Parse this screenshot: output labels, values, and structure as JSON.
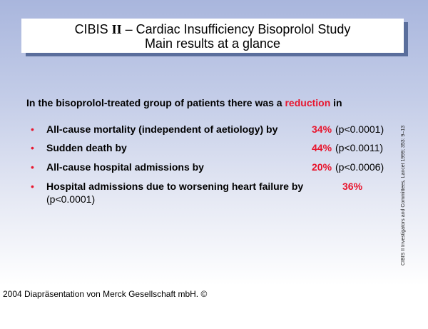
{
  "title": {
    "prefix": "CIBIS ",
    "roman": "II",
    "suffix": "  –  Cardiac Insufficiency Bisoprolol Study",
    "subtitle": "Main results at a glance"
  },
  "intro": {
    "before": "In the bisoprolol-treated group of patients there was a ",
    "highlight": "reduction",
    "after": " in"
  },
  "bullet_symbol": "•",
  "items": [
    {
      "label": "All-cause mortality (independent of aetiology) by",
      "percent": "34%",
      "p_value": "(p<0.0001)"
    },
    {
      "label": "Sudden death by",
      "percent": "44%",
      "p_value": "(p<0.0011)"
    },
    {
      "label": "All-cause hospital admissions by",
      "percent": "20%",
      "p_value": "(p<0.0006)"
    },
    {
      "label": "Hospital admissions due to worsening heart failure by",
      "percent": "36%",
      "p_value": "(p<0.0001)"
    }
  ],
  "reference": "CIBIS II Investigators and Committees, Lancet 1999; 353: 9–13",
  "footer": "2004 Diapräsentation von Merck Gesellschaft mbH. ©",
  "colors": {
    "accent_red": "#e8162e",
    "shadow_blue": "#5a6e9c",
    "background_top": "#a9b6dd"
  }
}
